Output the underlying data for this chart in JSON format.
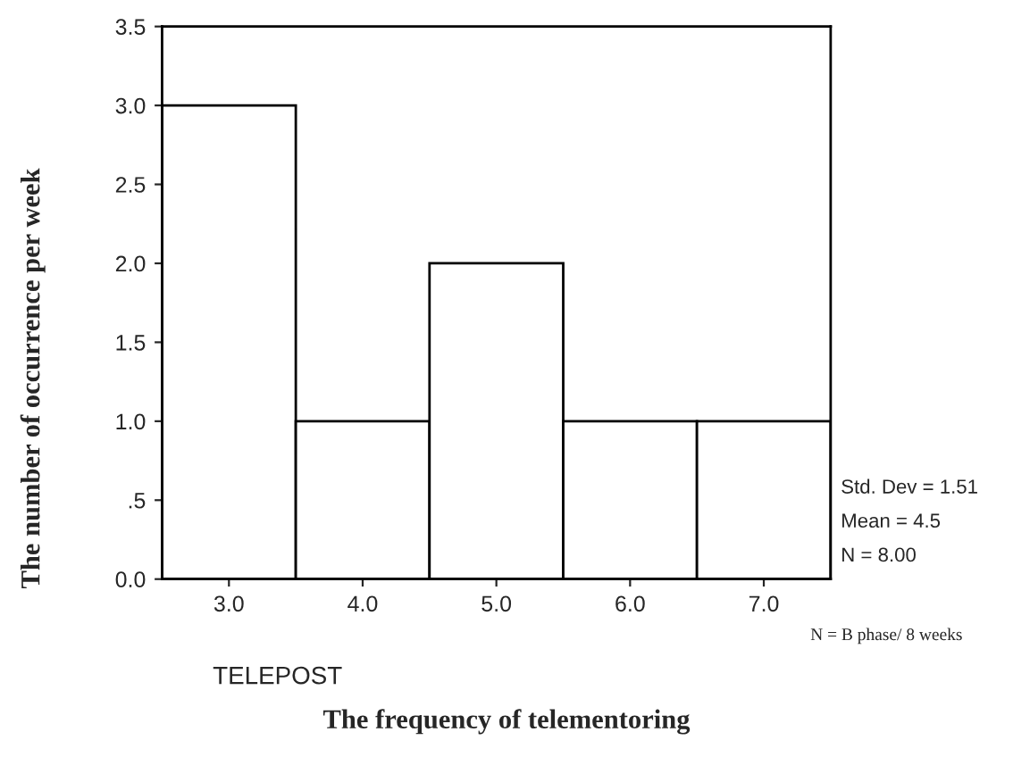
{
  "chart_data": {
    "type": "histogram",
    "xlabel": "The frequency of telementoring",
    "ylabel": "The number of occurrence per week",
    "bins": [
      2.5,
      3.5,
      4.5,
      5.5,
      6.5,
      7.5
    ],
    "values": [
      3,
      1,
      2,
      1,
      1
    ],
    "color": "#ffffff",
    "xlim": [
      2.5,
      7.5
    ],
    "xticks": [
      {
        "value": 3,
        "label": "3.0"
      },
      {
        "value": 4,
        "label": "4.0"
      },
      {
        "value": 5,
        "label": "5.0"
      },
      {
        "value": 6,
        "label": "6.0"
      },
      {
        "value": 7,
        "label": "7.0"
      }
    ],
    "ylim": [
      0,
      3.5
    ],
    "yticks": [
      {
        "value": 0,
        "label": "0.0"
      },
      {
        "value": 0.5,
        "label": ".5"
      },
      {
        "value": 1,
        "label": "1.0"
      },
      {
        "value": 1.5,
        "label": "1.5"
      },
      {
        "value": 2,
        "label": "2.0"
      },
      {
        "value": 2.5,
        "label": "2.5"
      },
      {
        "value": 3,
        "label": "3.0"
      },
      {
        "value": 3.5,
        "label": "3.5"
      }
    ],
    "grid": false,
    "annotations": [
      "TELEPOST",
      "Std. Dev = 1.51",
      "Mean = 4.5",
      "N = 8.00",
      "N = B phase/ 8 weeks"
    ]
  }
}
